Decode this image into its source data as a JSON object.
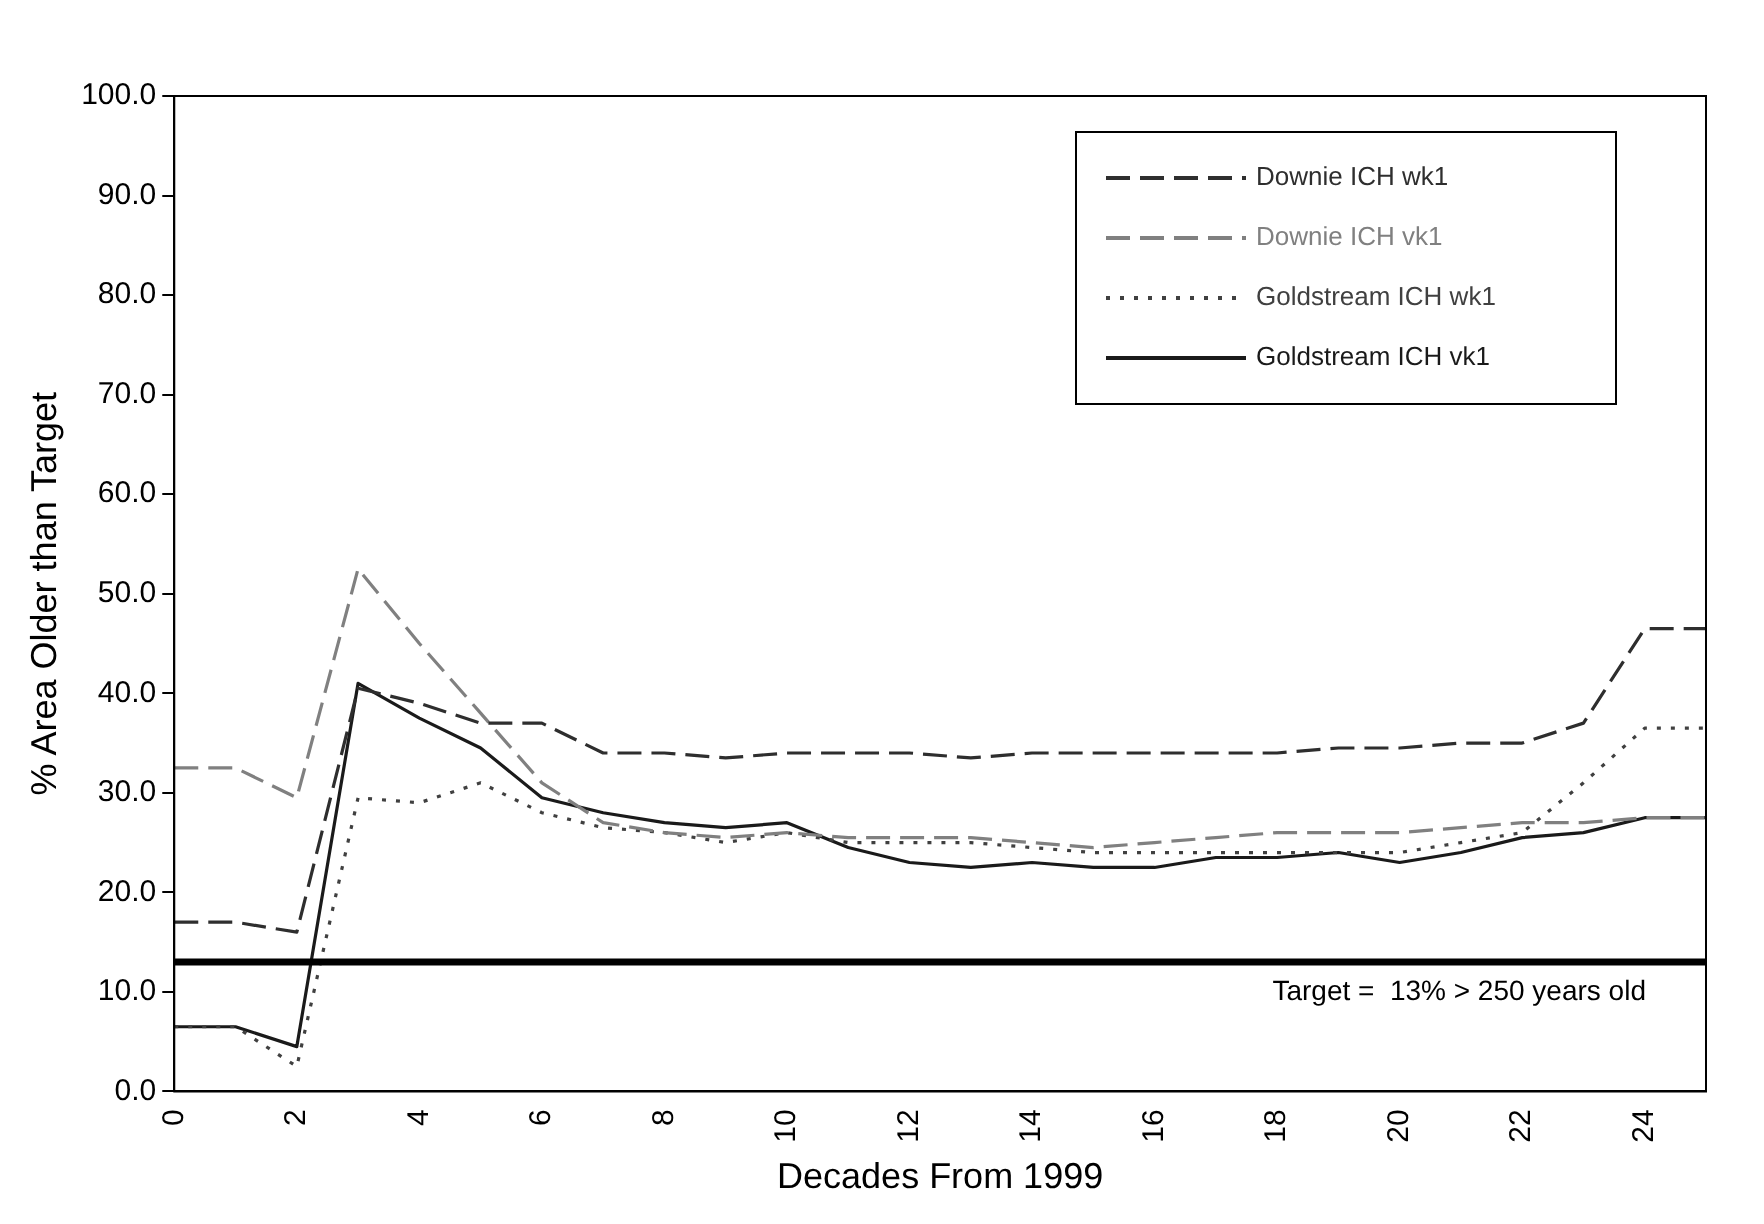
{
  "chart_data": {
    "type": "line",
    "xlabel": "Decades From 1999",
    "ylabel": "% Area Older than Target",
    "categories": [
      "0",
      null,
      "2",
      null,
      "4",
      null,
      "6",
      null,
      "8",
      null,
      "10",
      null,
      "12",
      null,
      "14",
      null,
      "16",
      null,
      "18",
      null,
      "20",
      null,
      "22",
      null,
      "24",
      null
    ],
    "series": [
      {
        "name": "Downie ICH wk1",
        "color": "#2e2e2e",
        "line_style": "dashed",
        "values": [
          17,
          17,
          16,
          40.5,
          39,
          37,
          37,
          34,
          34,
          33.5,
          34,
          34,
          34,
          33.5,
          34,
          34,
          34,
          34,
          34,
          34.5,
          34.5,
          35,
          35,
          37,
          46.5,
          46.5
        ]
      },
      {
        "name": "Downie ICH vk1",
        "color": "#808080",
        "line_style": "dashed",
        "values": [
          32.5,
          32.5,
          29.5,
          52.5,
          45,
          38,
          31,
          27,
          26,
          25.5,
          26,
          25.5,
          25.5,
          25.5,
          25,
          24.5,
          25,
          25.5,
          26,
          26,
          26,
          26.5,
          27,
          27,
          27.5,
          27.5
        ]
      },
      {
        "name": "Goldstream ICH wk1",
        "color": "#404040",
        "line_style": "dotted",
        "values": [
          6.5,
          6.5,
          2.5,
          29.5,
          29,
          31,
          28,
          26.5,
          26,
          25,
          26,
          25,
          25,
          25,
          24.5,
          24,
          24,
          24,
          24,
          24,
          24,
          25,
          26,
          31,
          36.5,
          36.5
        ]
      },
      {
        "name": "Goldstream ICH vk1",
        "color": "#1a1a1a",
        "line_style": "solid",
        "values": [
          6.5,
          6.5,
          4.5,
          41,
          37.5,
          34.5,
          29.5,
          28,
          27,
          26.5,
          27,
          24.5,
          23,
          22.5,
          23,
          22.5,
          22.5,
          23.5,
          23.5,
          24,
          23,
          24,
          25.5,
          26,
          27.5,
          27.5
        ]
      }
    ],
    "ylim": [
      0,
      100
    ],
    "yticks": [
      {
        "value": 0,
        "label": "0.0"
      },
      {
        "value": 10,
        "label": "10.0"
      },
      {
        "value": 20,
        "label": "20.0"
      },
      {
        "value": 30,
        "label": "30.0"
      },
      {
        "value": 40,
        "label": "40.0"
      },
      {
        "value": 50,
        "label": "50.0"
      },
      {
        "value": 60,
        "label": "60.0"
      },
      {
        "value": 70,
        "label": "70.0"
      },
      {
        "value": 80,
        "label": "80.0"
      },
      {
        "value": 90,
        "label": "90.0"
      },
      {
        "value": 100,
        "label": "100.0"
      }
    ],
    "ref_lines": [
      {
        "axis": "y",
        "value": 13,
        "label": "Target =  13% > 250 years old",
        "color": "#000000"
      }
    ],
    "legend": "top right",
    "grid": false,
    "marker": "none"
  }
}
